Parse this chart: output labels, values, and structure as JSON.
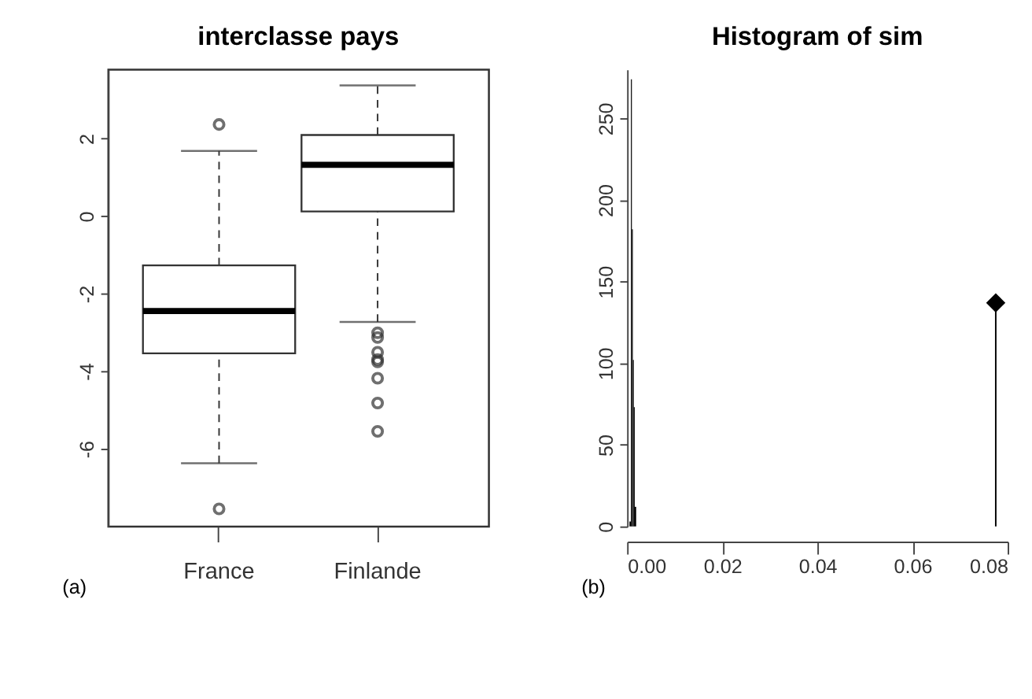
{
  "chart_data": [
    {
      "type": "box",
      "title": "interclasse pays",
      "categories": [
        "France",
        "Finlande"
      ],
      "ylim": [
        -8,
        3.78
      ],
      "yticks": [
        -6,
        -4,
        -2,
        0,
        2
      ],
      "grid": false,
      "annotations": [
        "(a)"
      ],
      "boxes": [
        {
          "low": -6.37,
          "q1": -3.54,
          "median": -2.45,
          "q3": -1.27,
          "high": 1.68,
          "outliers": [
            2.36,
            -7.55
          ]
        },
        {
          "low": -2.73,
          "q1": 0.12,
          "median": 1.32,
          "q3": 2.09,
          "high": 3.37,
          "outliers": [
            -3.01,
            -3.13,
            -3.51,
            -3.7,
            -3.76,
            -4.18,
            -4.82,
            -5.55
          ]
        }
      ]
    },
    {
      "type": "histogram",
      "title": "Histogram of sim",
      "bins": [
        0.0005,
        0.0008,
        0.001,
        0.0012,
        0.0014,
        0.0016,
        0.0019
      ],
      "values": [
        3,
        274,
        182,
        102,
        73,
        12
      ],
      "color": "#000000",
      "xlim": [
        0,
        0.08
      ],
      "xticks": [
        {
          "value": 0,
          "label": "0.00"
        },
        {
          "value": 0.02,
          "label": "0.02"
        },
        {
          "value": 0.04,
          "label": "0.04"
        },
        {
          "value": 0.06,
          "label": "0.06"
        },
        {
          "value": 0.08,
          "label": "0.08"
        }
      ],
      "ylim": [
        0,
        280
      ],
      "yticks": [
        0,
        50,
        100,
        150,
        200,
        250
      ],
      "grid": false,
      "annotations": [
        "(b)"
      ],
      "series": [
        {
          "type": "lollipop",
          "x": [
            0.0775
          ],
          "values": [
            137
          ],
          "color": "#000000",
          "marker": "diamond"
        }
      ]
    }
  ]
}
